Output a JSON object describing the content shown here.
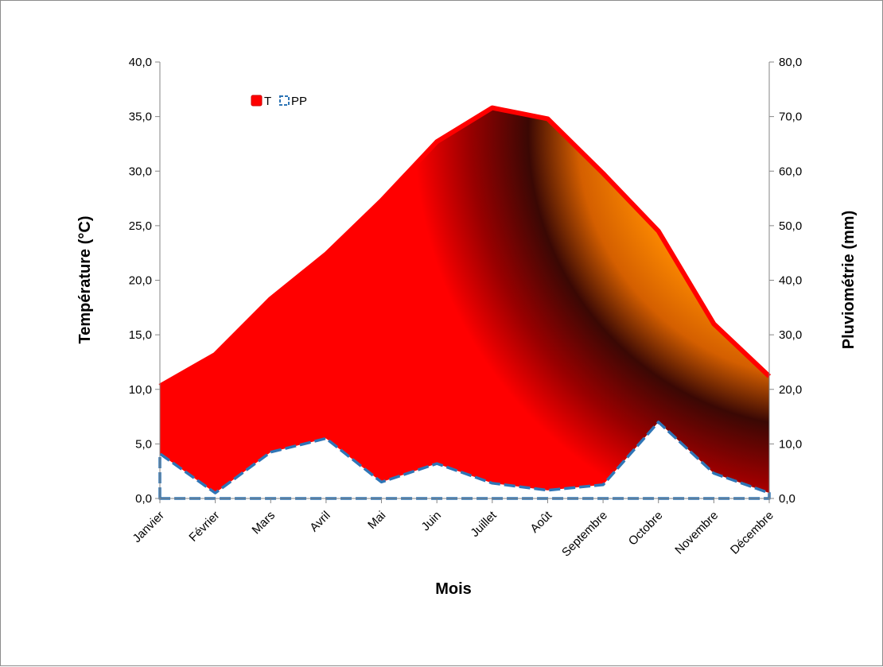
{
  "chart_data": {
    "type": "area",
    "categories": [
      "Janvier",
      "Février",
      "Mars",
      "Avril",
      "Mai",
      "Juin",
      "Juillet",
      "Août",
      "Septembre",
      "Octobre",
      "Novembre",
      "Décembre"
    ],
    "series": [
      {
        "name": "T",
        "axis": "left",
        "values": [
          10.3,
          13.2,
          18.3,
          22.4,
          27.3,
          32.7,
          35.8,
          34.8,
          29.8,
          24.5,
          16.0,
          11.2
        ],
        "color": "#ff0000"
      },
      {
        "name": "PP",
        "axis": "right",
        "values": [
          8.2,
          1.0,
          8.5,
          11.0,
          3.0,
          6.4,
          2.8,
          1.5,
          2.5,
          14.0,
          4.6,
          1.0
        ],
        "color": "#2e75b6"
      }
    ],
    "xlabel": "Mois",
    "ylabel": "Température (°C)",
    "y2label": "Pluviométrie (mm)",
    "ylim": [
      0,
      40
    ],
    "y2lim": [
      0,
      80
    ],
    "yticks": [
      "0,0",
      "5,0",
      "10,0",
      "15,0",
      "20,0",
      "25,0",
      "30,0",
      "35,0",
      "40,0"
    ],
    "y2ticks": [
      "0,0",
      "10,0",
      "20,0",
      "30,0",
      "40,0",
      "50,0",
      "60,0",
      "70,0",
      "80,0"
    ],
    "legend": {
      "position": "top-left",
      "items": [
        "T",
        "PP"
      ]
    },
    "grid": false
  }
}
